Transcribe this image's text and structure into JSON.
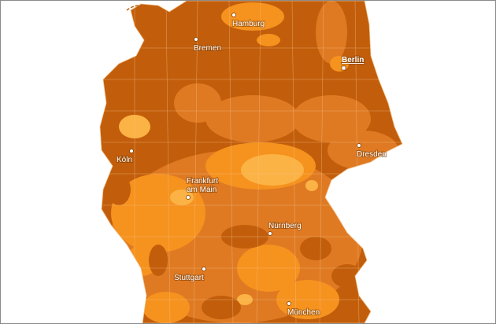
{
  "map": {
    "colors": {
      "darkest": "#c25e0b",
      "dark": "#df7a23",
      "medium": "#f6921e",
      "light": "#fbb345",
      "border": "#f3c08a"
    },
    "cities": [
      {
        "name": "Hamburg",
        "bold": false
      },
      {
        "name": "Bremen",
        "bold": false
      },
      {
        "name": "Berlin",
        "bold": true
      },
      {
        "name": "Köln",
        "bold": false
      },
      {
        "name": "Dresden",
        "bold": false
      },
      {
        "name": "Frankfurt",
        "bold": false
      },
      {
        "name": "am Main",
        "bold": false
      },
      {
        "name": "Nürnberg",
        "bold": false
      },
      {
        "name": "Stuttgart",
        "bold": false
      },
      {
        "name": "München",
        "bold": false
      }
    ]
  }
}
